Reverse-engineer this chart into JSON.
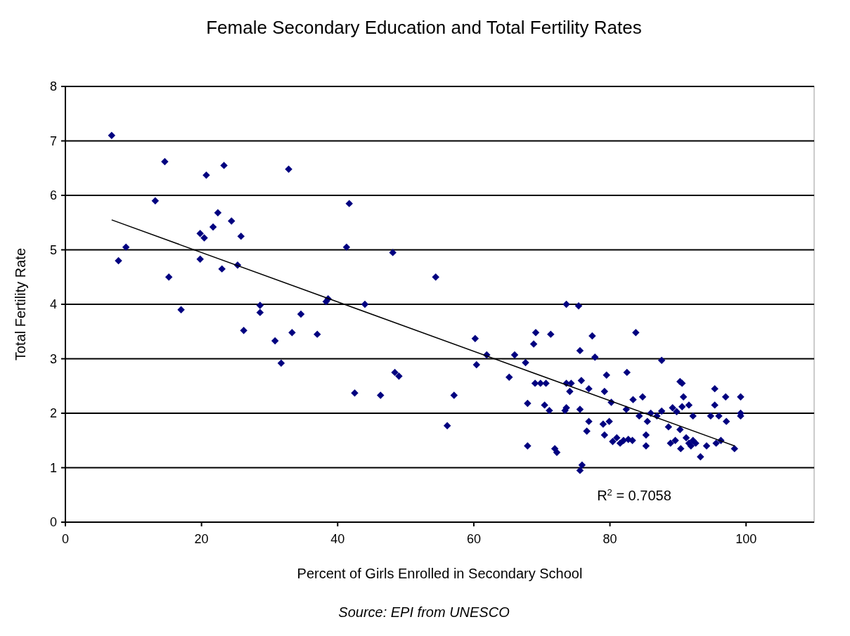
{
  "chart_data": {
    "type": "scatter",
    "title": "Female Secondary Education and Total Fertility Rates",
    "xlabel": "Percent of Girls Enrolled in Secondary School",
    "ylabel": "Total Fertility Rate",
    "xlim": [
      0,
      110
    ],
    "xticks": [
      0,
      20,
      40,
      60,
      80,
      100
    ],
    "ylim": [
      0,
      8
    ],
    "yticks": [
      0,
      1,
      2,
      3,
      4,
      5,
      6,
      7,
      8
    ],
    "grid": "y",
    "annotations": [
      "R$^{2}$ = 0.7058",
      "Source: EPI from UNESCO"
    ],
    "series": [
      {
        "type": "scatter",
        "marker": "diamond",
        "color": "#000080",
        "x": [
          6.8,
          7.8,
          8.9,
          13.2,
          14.6,
          15.2,
          17,
          19.8,
          19.8,
          20.4,
          20.7,
          21.7,
          22.4,
          23,
          23.3,
          24.4,
          25.3,
          25.8,
          26.2,
          28.6,
          28.6,
          32.8,
          30.8,
          31.7,
          33.3,
          34.6,
          37,
          38.3,
          38.6,
          41.3,
          41.7,
          42.5,
          44,
          46.3,
          48.1,
          48.4,
          49,
          54.4,
          56.1,
          57.1,
          60.2,
          60.4,
          61.9,
          65.2,
          66,
          67.6,
          67.9,
          67.9,
          68.8,
          69.1,
          69,
          69.8,
          70.6,
          70.4,
          71.1,
          71.3,
          71.9,
          72.2,
          73.6,
          73.6,
          73.6,
          73.4,
          74.1,
          74.3,
          75.4,
          75.6,
          75.8,
          75.6,
          75.6,
          75.9,
          76.6,
          76.9,
          76.9,
          77.4,
          77.8,
          79,
          79.2,
          79.2,
          79.5,
          79.9,
          80.2,
          80.4,
          81,
          81.5,
          82,
          82.7,
          83.3,
          82.4,
          82.5,
          83.4,
          83.8,
          84.8,
          84.3,
          85.3,
          85.3,
          85.5,
          86,
          86.9,
          87.6,
          87.6,
          88.6,
          88.9,
          89.2,
          89.8,
          89.6,
          90.3,
          90.6,
          90.6,
          90.8,
          90.3,
          90.4,
          91.2,
          91.6,
          91.9,
          91.6,
          92.2,
          92.2,
          92.6,
          93.3,
          94.2,
          94.8,
          95.4,
          95.4,
          95.6,
          97,
          96.3,
          97.1,
          96,
          98.3,
          99.2,
          99.2,
          99.2
        ],
        "values": [
          7.1,
          4.8,
          5.05,
          5.9,
          6.62,
          4.5,
          3.9,
          5.3,
          4.83,
          5.22,
          6.37,
          5.42,
          5.68,
          4.65,
          6.55,
          5.53,
          4.72,
          5.25,
          3.52,
          3.98,
          3.85,
          6.48,
          3.33,
          2.92,
          3.48,
          3.82,
          3.45,
          4.05,
          4.1,
          5.05,
          5.85,
          2.37,
          4.0,
          2.33,
          4.95,
          2.75,
          2.68,
          4.5,
          1.77,
          2.33,
          3.37,
          2.89,
          3.07,
          2.66,
          3.07,
          2.93,
          2.18,
          1.4,
          3.27,
          3.48,
          2.55,
          2.55,
          2.55,
          2.15,
          2.05,
          3.45,
          1.35,
          1.28,
          4.0,
          2.55,
          2.1,
          2.05,
          2.4,
          2.55,
          3.97,
          3.15,
          2.6,
          2.07,
          0.95,
          1.05,
          1.67,
          1.85,
          2.45,
          3.42,
          3.03,
          1.8,
          1.6,
          2.4,
          2.7,
          1.85,
          2.2,
          1.48,
          1.55,
          1.45,
          1.5,
          1.52,
          1.5,
          2.07,
          2.75,
          2.25,
          3.48,
          2.3,
          1.95,
          1.4,
          1.6,
          1.85,
          2.0,
          1.95,
          2.04,
          2.97,
          1.75,
          1.45,
          2.1,
          2.03,
          1.5,
          2.58,
          2.55,
          2.12,
          2.3,
          1.7,
          1.35,
          1.55,
          1.45,
          1.4,
          2.15,
          1.5,
          1.95,
          1.45,
          1.2,
          1.4,
          1.95,
          2.45,
          2.15,
          1.45,
          2.3,
          1.5,
          1.85,
          1.95,
          1.35,
          2.3,
          1.95,
          2.0
        ]
      },
      {
        "type": "line",
        "color": "#000000",
        "x": [
          6.8,
          98.3
        ],
        "values": [
          5.55,
          1.4
        ]
      }
    ]
  }
}
